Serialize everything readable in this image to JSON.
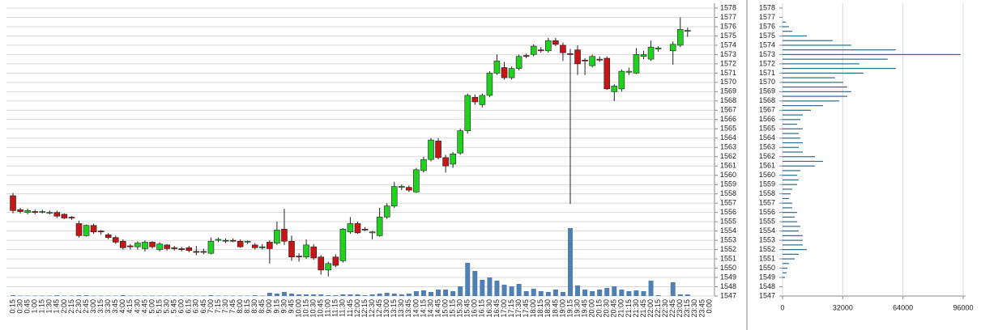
{
  "chart_data": [
    {
      "type": "candlestick",
      "categories": [
        "0:15",
        "0:30",
        "0:45",
        "1:00",
        "1:15",
        "1:30",
        "1:45",
        "2:00",
        "2:15",
        "2:30",
        "2:45",
        "3:00",
        "3:15",
        "3:30",
        "3:45",
        "4:00",
        "4:15",
        "4:30",
        "4:45",
        "5:00",
        "5:15",
        "5:30",
        "5:45",
        "6:00",
        "6:15",
        "6:30",
        "6:45",
        "7:00",
        "7:15",
        "7:30",
        "7:45",
        "8:00",
        "8:15",
        "8:30",
        "8:45",
        "9:00",
        "9:15",
        "9:30",
        "9:45",
        "10:00",
        "10:15",
        "10:30",
        "10:45",
        "11:00",
        "11:15",
        "11:30",
        "11:45",
        "12:00",
        "12:15",
        "12:30",
        "12:45",
        "13:00",
        "13:15",
        "13:30",
        "13:45",
        "14:00",
        "14:15",
        "14:30",
        "14:45",
        "15:00",
        "15:15",
        "15:30",
        "15:45",
        "16:00",
        "16:15",
        "16:30",
        "16:45",
        "17:00",
        "17:15",
        "17:30",
        "17:45",
        "18:00",
        "18:15",
        "18:30",
        "18:45",
        "19:00",
        "19:15",
        "19:30",
        "19:45",
        "20:00",
        "20:15",
        "20:30",
        "20:45",
        "21:00",
        "21:15",
        "21:30",
        "21:45",
        "22:00",
        "22:15",
        "22:30",
        "22:45",
        "23:00",
        "23:15",
        "23:30",
        "23:45",
        "0:00"
      ],
      "open": [
        1557.8,
        1556.3,
        1556.0,
        1556.1,
        1556.1,
        1556.0,
        1556.0,
        1555.8,
        1555.5,
        1554.8,
        1553.5,
        1554.6,
        1554.0,
        1553.6,
        1553.3,
        1552.9,
        1552.4,
        1552.3,
        1552.1,
        1552.8,
        1552.0,
        1552.5,
        1552.2,
        1552.1,
        1552.2,
        1551.8,
        1551.8,
        1551.6,
        1553.0,
        1553.0,
        1553.0,
        1552.9,
        1552.8,
        1552.5,
        1552.3,
        1552.8,
        1552.7,
        1554.2,
        1552.9,
        1551.3,
        1551.2,
        1552.3,
        1551.2,
        1549.8,
        1551.2,
        1550.8,
        1553.9,
        1554.8,
        1554.2,
        1553.8,
        1553.5,
        1555.5,
        1556.7,
        1558.7,
        1558.7,
        1558.2,
        1560.5,
        1561.7,
        1563.7,
        1561.9,
        1561.2,
        1562.4,
        1564.8,
        1568.4,
        1567.6,
        1568.6,
        1571.0,
        1571.6,
        1570.5,
        1571.5,
        1572.9,
        1573.0,
        1573.5,
        1573.4,
        1574.5,
        1574.0,
        1573.1,
        1573.5,
        1572.4,
        1571.8,
        1572.5,
        1572.6,
        1569.0,
        1569.3,
        1571.1,
        1571.0,
        1572.8,
        1572.5,
        1573.6,
        null,
        1573.4,
        1574.0,
        1575.5,
        null,
        null,
        null
      ],
      "high": [
        1558.1,
        1556.5,
        1556.4,
        1556.3,
        1556.3,
        1556.2,
        1556.2,
        1555.9,
        1555.6,
        1555.1,
        1554.7,
        1554.8,
        1554.1,
        1553.8,
        1553.5,
        1553.1,
        1552.6,
        1552.9,
        1553.0,
        1552.9,
        1552.8,
        1552.6,
        1552.4,
        1552.3,
        1552.4,
        1552.4,
        1552.1,
        1553.3,
        1553.3,
        1553.2,
        1553.2,
        1553.1,
        1553.0,
        1552.7,
        1552.6,
        1553.0,
        1555.0,
        1556.4,
        1553.5,
        1551.6,
        1553.1,
        1552.6,
        1551.4,
        1550.7,
        1551.5,
        1554.3,
        1555.5,
        1555.0,
        1554.4,
        1554.0,
        1556.5,
        1557.0,
        1559.3,
        1559.0,
        1558.9,
        1560.8,
        1562.0,
        1564.0,
        1564.0,
        1562.2,
        1562.5,
        1565.0,
        1568.8,
        1568.7,
        1568.8,
        1571.2,
        1573.0,
        1572.2,
        1571.7,
        1573.0,
        1573.1,
        1574.1,
        1573.8,
        1574.8,
        1574.8,
        1574.3,
        1573.6,
        1574.0,
        1572.6,
        1573.0,
        1572.8,
        1572.8,
        1569.8,
        1571.4,
        1571.6,
        1573.7,
        1573.4,
        1574.5,
        1573.9,
        null,
        1574.4,
        1577.0,
        1575.9,
        null,
        null,
        null
      ],
      "low": [
        1555.9,
        1555.9,
        1555.8,
        1555.8,
        1555.9,
        1555.8,
        1555.4,
        1555.3,
        1555.2,
        1553.3,
        1553.4,
        1553.7,
        1553.6,
        1553.1,
        1552.6,
        1552.0,
        1552.0,
        1552.0,
        1551.8,
        1552.1,
        1551.8,
        1551.9,
        1551.9,
        1551.8,
        1551.7,
        1551.4,
        1551.5,
        1551.5,
        1552.8,
        1552.7,
        1552.8,
        1552.2,
        1552.6,
        1552.0,
        1552.0,
        1550.5,
        1552.5,
        1552.5,
        1550.8,
        1550.7,
        1551.0,
        1550.9,
        1549.3,
        1549.1,
        1550.1,
        1550.6,
        1553.7,
        1553.7,
        1554.0,
        1553.1,
        1553.4,
        1555.3,
        1556.5,
        1558.4,
        1558.2,
        1558.1,
        1560.3,
        1561.5,
        1561.7,
        1560.3,
        1560.8,
        1562.2,
        1564.5,
        1567.6,
        1567.3,
        1568.4,
        1570.8,
        1570.3,
        1570.3,
        1571.3,
        1572.6,
        1572.8,
        1573.2,
        1573.2,
        1573.9,
        1572.3,
        1556.9,
        1570.8,
        1570.8,
        1571.6,
        1572.2,
        1569.2,
        1568.0,
        1569.0,
        1570.8,
        1570.9,
        1572.5,
        1572.3,
        1573.3,
        null,
        1571.9,
        1573.8,
        1574.9,
        null,
        null,
        null
      ],
      "close": [
        1556.2,
        1556.1,
        1556.2,
        1556.0,
        1556.1,
        1556.0,
        1555.6,
        1555.4,
        1555.4,
        1553.5,
        1554.6,
        1553.9,
        1553.9,
        1553.3,
        1552.8,
        1552.2,
        1552.3,
        1552.7,
        1552.8,
        1552.3,
        1552.6,
        1552.1,
        1552.1,
        1552.0,
        1551.9,
        1551.7,
        1551.7,
        1552.9,
        1553.1,
        1552.9,
        1552.9,
        1552.3,
        1552.9,
        1552.2,
        1552.2,
        1552.1,
        1554.1,
        1552.9,
        1551.2,
        1551.2,
        1552.5,
        1551.1,
        1549.8,
        1550.5,
        1550.3,
        1554.2,
        1554.8,
        1553.8,
        1554.1,
        1553.9,
        1555.5,
        1556.7,
        1558.8,
        1558.8,
        1558.4,
        1560.6,
        1561.7,
        1563.8,
        1561.9,
        1561.0,
        1562.3,
        1564.8,
        1568.6,
        1567.9,
        1568.6,
        1571.0,
        1572.3,
        1570.5,
        1571.5,
        1572.8,
        1572.8,
        1573.9,
        1573.4,
        1574.5,
        1574.1,
        1573.2,
        1573.0,
        1572.0,
        1572.3,
        1572.8,
        1572.4,
        1569.3,
        1569.6,
        1571.2,
        1571.2,
        1573.0,
        1573.0,
        1573.8,
        1573.7,
        null,
        1574.1,
        1575.7,
        1575.6,
        null,
        null,
        null
      ],
      "volume": [
        200,
        100,
        100,
        100,
        100,
        100,
        200,
        100,
        100,
        200,
        200,
        100,
        100,
        100,
        100,
        200,
        100,
        100,
        100,
        100,
        100,
        100,
        100,
        100,
        100,
        100,
        100,
        200,
        100,
        100,
        100,
        100,
        100,
        200,
        100,
        800,
        600,
        1000,
        600,
        400,
        400,
        400,
        400,
        200,
        200,
        400,
        400,
        400,
        200,
        400,
        600,
        800,
        600,
        400,
        600,
        1200,
        1400,
        1000,
        1600,
        1600,
        1200,
        2400,
        8200,
        6200,
        4000,
        4600,
        3800,
        2800,
        2400,
        3000,
        1200,
        1800,
        1200,
        1000,
        1600,
        1000,
        16800,
        2600,
        1600,
        1200,
        1600,
        2000,
        2400,
        1600,
        1200,
        1400,
        1200,
        3800,
        200,
        null,
        3400,
        400,
        400,
        null,
        null,
        null
      ],
      "up_color": "#22d022",
      "down_color": "#c81414",
      "volume_color": "#4f7fb3",
      "ylim": [
        1547,
        1578
      ],
      "yticks": [
        1547,
        1548,
        1549,
        1550,
        1551,
        1552,
        1553,
        1554,
        1555,
        1556,
        1557,
        1558,
        1559,
        1560,
        1561,
        1562,
        1563,
        1564,
        1565,
        1566,
        1567,
        1568,
        1569,
        1570,
        1571,
        1572,
        1573,
        1574,
        1575,
        1576,
        1577,
        1578
      ],
      "grid": true
    },
    {
      "type": "bar",
      "orientation": "horizontal",
      "y": [
        1576.5,
        1576,
        1575.5,
        1575,
        1574.5,
        1574,
        1573.5,
        1573,
        1572.5,
        1572,
        1571.5,
        1571,
        1570.5,
        1570,
        1569.5,
        1569,
        1568.5,
        1568,
        1567.5,
        1567,
        1566.5,
        1566,
        1565.5,
        1565,
        1564.5,
        1564,
        1563.5,
        1563,
        1562.5,
        1562,
        1561.5,
        1561,
        1560.5,
        1560,
        1559.5,
        1559,
        1558.5,
        1558,
        1557.5,
        1557,
        1556.5,
        1556,
        1555.5,
        1555,
        1554.5,
        1554,
        1553.5,
        1553,
        1552.5,
        1552,
        1551.5,
        1551,
        1550.5,
        1550,
        1549.5,
        1549
      ],
      "values": [
        1720,
        3440,
        5160,
        12900,
        26660,
        36550,
        60200,
        94600,
        55900,
        40850,
        60200,
        43000,
        27950,
        32250,
        34400,
        36550,
        34400,
        30100,
        21500,
        15050,
        10750,
        9460,
        7740,
        10750,
        8600,
        9460,
        10750,
        8600,
        10750,
        17200,
        21500,
        17200,
        9460,
        7740,
        8600,
        7740,
        5160,
        4300,
        3440,
        5160,
        5160,
        7740,
        6450,
        7740,
        9460,
        8600,
        10750,
        10750,
        10750,
        12900,
        8600,
        6450,
        3440,
        2580,
        2150,
        1290
      ],
      "color": "#2f6b8c",
      "xlim": [
        0,
        96000
      ],
      "xticks": [
        0,
        32000,
        64000,
        96000
      ],
      "ylim": [
        1547,
        1578
      ],
      "yticks": [
        1547,
        1548,
        1549,
        1550,
        1551,
        1552,
        1553,
        1554,
        1555,
        1556,
        1557,
        1558,
        1559,
        1560,
        1561,
        1562,
        1563,
        1564,
        1565,
        1566,
        1567,
        1568,
        1569,
        1570,
        1571,
        1572,
        1573,
        1574,
        1575,
        1576,
        1577,
        1578
      ],
      "grid": true
    }
  ]
}
